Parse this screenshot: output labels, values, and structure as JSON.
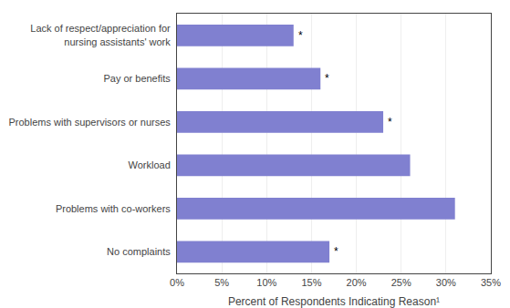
{
  "chart_data": {
    "type": "bar",
    "orientation": "horizontal",
    "categories": [
      "No complaints",
      "Problems with co-workers",
      "Workload",
      "Problems with supervisors or nurses",
      "Pay or benefits",
      "Lack of respect/appreciation for\nnursing assistants' work"
    ],
    "values": [
      17,
      31,
      26,
      23,
      16,
      13
    ],
    "color": "#8080d0",
    "xlabel": "Percent of Respondents Indicating Reason¹",
    "xlim": [
      0,
      35
    ],
    "xticks": [
      {
        "value": 0,
        "label": "0%"
      },
      {
        "value": 5,
        "label": "5%"
      },
      {
        "value": 10,
        "label": "10%"
      },
      {
        "value": 15,
        "label": "15%"
      },
      {
        "value": 20,
        "label": "20%"
      },
      {
        "value": 25,
        "label": "25%"
      },
      {
        "value": 30,
        "label": "30%"
      },
      {
        "value": 35,
        "label": "35%"
      }
    ],
    "grid": true,
    "annotations": [
      {
        "category": "No complaints",
        "text": "*"
      },
      {
        "category": "Problems with supervisors or nurses",
        "text": "*"
      },
      {
        "category": "Pay or benefits",
        "text": "*"
      },
      {
        "category": "Lack of respect/appreciation for\nnursing assistants' work",
        "text": "*"
      }
    ]
  }
}
